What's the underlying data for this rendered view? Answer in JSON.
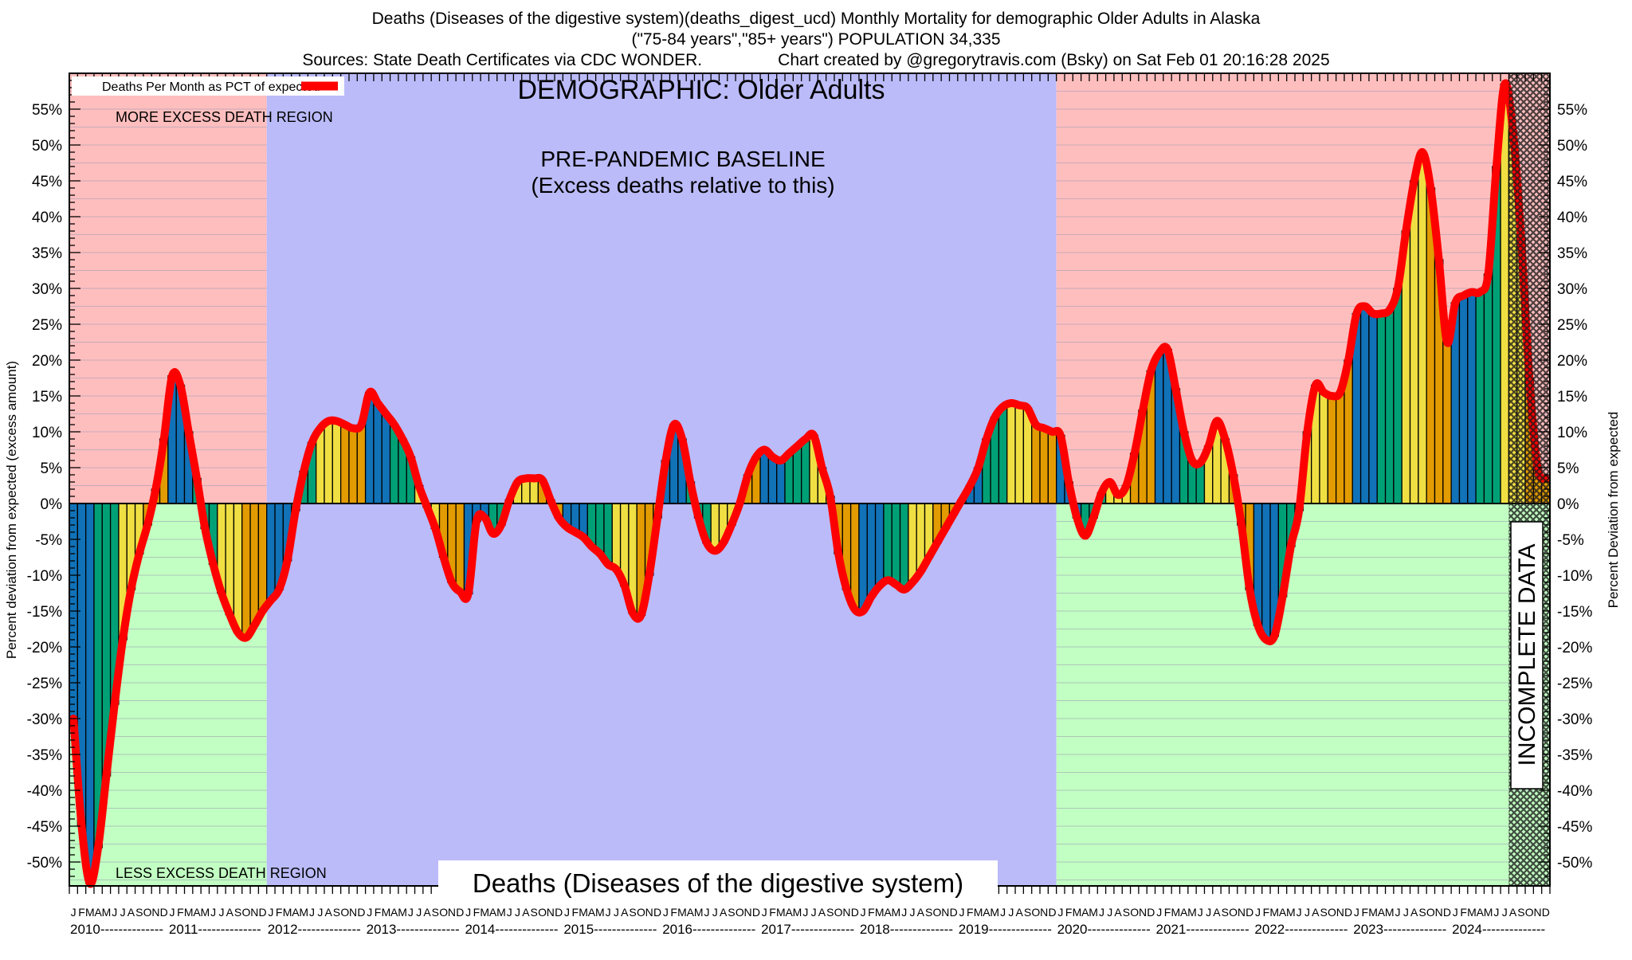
{
  "header": {
    "line1": "Deaths (Diseases of the digestive system)(deaths_digest_ucd) Monthly Mortality for demographic Older Adults in Alaska",
    "line2": "(\"75-84 years\",\"85+ years\") POPULATION 34,335",
    "line3_left": "Sources: State Death Certificates via CDC WONDER.",
    "line3_right": "Chart created by @gregorytravis.com (Bsky) on Sat Feb 01 20:16:28 2025"
  },
  "chart_data": {
    "type": "bar",
    "title": "Deaths (Diseases of the digestive system)",
    "series_name": "Deaths Per Month as PCT of expected",
    "ylabel_left": "Percent deviation from expected (excess amount)",
    "ylabel_right": "Percent Deviation from expected",
    "ylim": [
      -53.3,
      60
    ],
    "ytick_step": 5,
    "yticks": [
      -50,
      -45,
      -40,
      -35,
      -30,
      -25,
      -20,
      -15,
      -10,
      -5,
      0,
      5,
      10,
      15,
      20,
      25,
      30,
      35,
      40,
      45,
      50,
      55
    ],
    "years": [
      2010,
      2011,
      2012,
      2013,
      2014,
      2015,
      2016,
      2017,
      2018,
      2019,
      2020,
      2021,
      2022,
      2023,
      2024
    ],
    "month_letters": "JFMAMJJASOND",
    "values_pct": [
      -30,
      -45,
      -53,
      -48,
      -38,
      -28,
      -19,
      -12,
      -7,
      -3,
      2,
      9,
      17.8,
      16.5,
      10,
      3.5,
      -3.5,
      -8.5,
      -12.5,
      -15.5,
      -18,
      -18.7,
      -17,
      -15,
      -13.5,
      -12,
      -8,
      -1,
      4.5,
      8.5,
      10.5,
      11.5,
      11.5,
      11,
      10.5,
      11,
      15.5,
      14,
      12.5,
      11,
      9,
      6.5,
      2.5,
      -0.5,
      -3.5,
      -7.5,
      -11,
      -12.3,
      -12.6,
      -2.5,
      -2,
      -4.2,
      -3,
      0.5,
      3,
      3.5,
      3.5,
      3.3,
      0.5,
      -2,
      -3.3,
      -4,
      -4.7,
      -6,
      -7,
      -8.5,
      -9.2,
      -11.5,
      -15.3,
      -15.6,
      -10,
      -2,
      6,
      11,
      9,
      3,
      -2,
      -5.5,
      -6.6,
      -5.5,
      -3,
      0,
      4,
      6.5,
      7.5,
      6.5,
      6,
      7,
      8,
      9,
      9.5,
      5,
      1,
      -7,
      -12,
      -14.8,
      -15,
      -13,
      -11.5,
      -10.7,
      -11.3,
      -12,
      -11,
      -9.5,
      -7.5,
      -5.5,
      -3.5,
      -1.5,
      0.5,
      2.5,
      5,
      9,
      12,
      13.5,
      14,
      13.7,
      13.3,
      11,
      10.5,
      10,
      9.5,
      3,
      -2,
      -4.5,
      -2,
      1.5,
      3,
      1.2,
      2.5,
      7,
      13,
      18.5,
      21,
      21.5,
      16,
      10,
      6,
      5.7,
      8,
      11.5,
      9,
      4,
      -3,
      -12,
      -17,
      -19,
      -18.5,
      -13,
      -6,
      -1,
      10,
      16.5,
      15.5,
      15,
      15.5,
      20,
      26.5,
      27.5,
      26.5,
      26.5,
      27,
      30,
      38,
      45,
      49,
      44,
      34,
      22.5,
      28,
      29,
      29.5,
      29.5,
      32,
      47,
      58.5,
      52,
      37,
      17.5,
      5,
      3.5
    ],
    "regions": {
      "pre_pandemic": {
        "label1": "PRE-PANDEMIC BASELINE",
        "label2": "(Excess deaths relative to this)",
        "start_month_index": 24,
        "end_month_index": 120
      },
      "more_excess_label": "MORE EXCESS DEATH REGION",
      "less_excess_label": "LESS EXCESS DEATH REGION",
      "incomplete": {
        "label": "INCOMPLETE DATA",
        "start_month_index": 175
      }
    },
    "demographic_label": "DEMOGRAPHIC: Older Adults",
    "legend_position": "top-left",
    "grid": "horizontal, every 2.5%, only in excess regions",
    "colors": {
      "quarter_bars": [
        "#1172b8",
        "#00a076",
        "#f0df42",
        "#e29b00"
      ],
      "line": "#ff0000",
      "bg_baseline": "#bbbbfa",
      "bg_excess": "#ffbebe",
      "bg_less": "#c2ffc2",
      "grid": "#9a9ab4"
    }
  }
}
